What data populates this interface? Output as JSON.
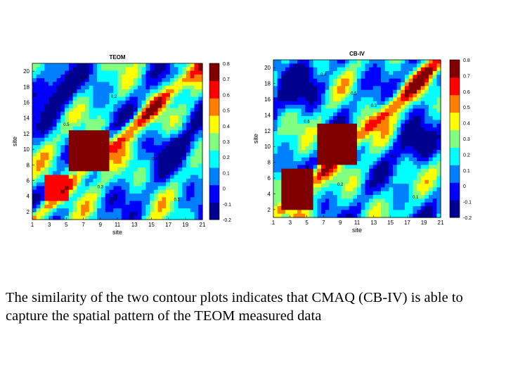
{
  "chart_data": [
    {
      "type": "heatmap",
      "title": "TEOM",
      "xlabel": "site",
      "ylabel": "site",
      "x_ticks": [
        "1",
        "3",
        "5",
        "7",
        "9",
        "11",
        "13",
        "15",
        "17",
        "19",
        "21"
      ],
      "y_ticks": [
        "2",
        "4",
        "6",
        "8",
        "10",
        "12",
        "14",
        "16",
        "18",
        "20"
      ],
      "colorbar_ticks": [
        "0.8",
        "0.7",
        "0.6",
        "0.5",
        "0.4",
        "0.3",
        "0.2",
        "0.1",
        "0",
        "-0.1",
        "-0.2"
      ],
      "zlim": [
        -0.2,
        0.8
      ],
      "colormap": [
        "#00008f",
        "#0000ff",
        "#0080ff",
        "#00ffff",
        "#80ff80",
        "#ffff00",
        "#ff8000",
        "#ff0000",
        "#800000"
      ],
      "contour_labels": [
        "0.3",
        "0.2",
        "0.4",
        "0.5",
        "0.4",
        "0.3",
        "0.1"
      ],
      "grid": "off"
    },
    {
      "type": "heatmap",
      "title": "CB-IV",
      "xlabel": "site",
      "ylabel": "site",
      "x_ticks": [
        "1",
        "3",
        "5",
        "7",
        "9",
        "11",
        "13",
        "15",
        "17",
        "19",
        "21"
      ],
      "y_ticks": [
        "2",
        "4",
        "6",
        "8",
        "10",
        "12",
        "14",
        "16",
        "18",
        "20"
      ],
      "colorbar_ticks": [
        "0.8",
        "0.7",
        "0.6",
        "0.5",
        "0.4",
        "0.3",
        "0.2",
        "0.1",
        "0",
        "-0.1",
        "-0.2"
      ],
      "zlim": [
        -0.2,
        0.8
      ],
      "colormap": [
        "#00008f",
        "#0000ff",
        "#0080ff",
        "#00ffff",
        "#80ff80",
        "#ffff00",
        "#ff8000",
        "#ff0000",
        "#800000"
      ],
      "contour_labels": [
        "0.4",
        "0.5",
        "0.3",
        "0.6",
        "0.4",
        "0.2",
        "0.1"
      ],
      "grid": "off"
    }
  ],
  "caption": "The similarity of the two contour plots indicates that CMAQ (CB-IV) is able to capture the spatial pattern of the TEOM measured data"
}
